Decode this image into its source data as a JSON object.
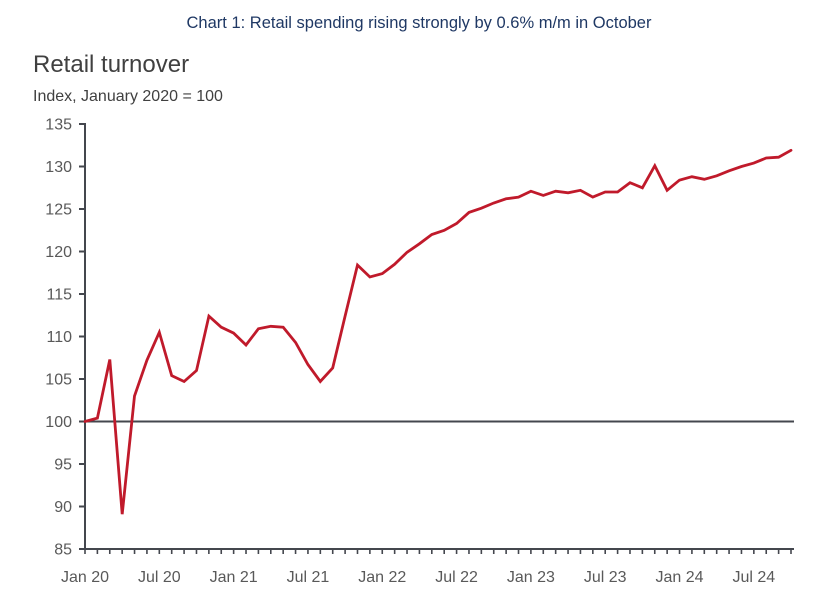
{
  "page": {
    "caption": "Chart 1: Retail spending rising strongly by 0.6% m/m in October",
    "heading": "Retail turnover",
    "subtitle": "Index, January 2020 = 100"
  },
  "colors": {
    "caption_text": "#1F3864",
    "heading_text": "#404040",
    "subtitle_text": "#404040",
    "axis": "#44474E",
    "tick_labels": "#595959",
    "reference_line": "#44474E",
    "series_line": "#C01A2B",
    "background": "#FFFFFF"
  },
  "chart_data": {
    "type": "line",
    "title": "Retail turnover",
    "subtitle": "Index, January 2020 = 100",
    "frequency": "monthly",
    "x_start": "Jan 2020",
    "x_end": "Oct 2024",
    "x_tick_labels": [
      "Jan 20",
      "Jul 20",
      "Jan 21",
      "Jul 21",
      "Jan 22",
      "Jul 22",
      "Jan 23",
      "Jul 23",
      "Jan 24",
      "Jul 24"
    ],
    "x_label_every_n_months": 6,
    "ylim": [
      85,
      135
    ],
    "y_ticks": [
      85,
      90,
      95,
      100,
      105,
      110,
      115,
      120,
      125,
      130,
      135
    ],
    "grid": false,
    "legend": false,
    "reference_line_value": 100,
    "series": [
      {
        "name": "Retail turnover index (Jan 2020 = 100)",
        "color": "#C01A2B",
        "values": [
          100.0,
          100.4,
          107.3,
          89.1,
          103.0,
          107.2,
          110.5,
          105.4,
          104.7,
          106.0,
          112.4,
          111.1,
          110.4,
          109.0,
          110.9,
          111.2,
          111.1,
          109.3,
          106.7,
          104.7,
          106.3,
          112.4,
          118.4,
          117.0,
          117.4,
          118.5,
          119.9,
          120.9,
          122.0,
          122.5,
          123.3,
          124.6,
          125.1,
          125.7,
          126.2,
          126.4,
          127.1,
          126.6,
          127.1,
          126.9,
          127.2,
          126.4,
          127.0,
          127.0,
          128.1,
          127.5,
          130.1,
          127.2,
          128.4,
          128.8,
          128.5,
          128.9,
          129.5,
          130.0,
          130.4,
          131.0,
          131.1,
          131.9
        ]
      }
    ]
  }
}
